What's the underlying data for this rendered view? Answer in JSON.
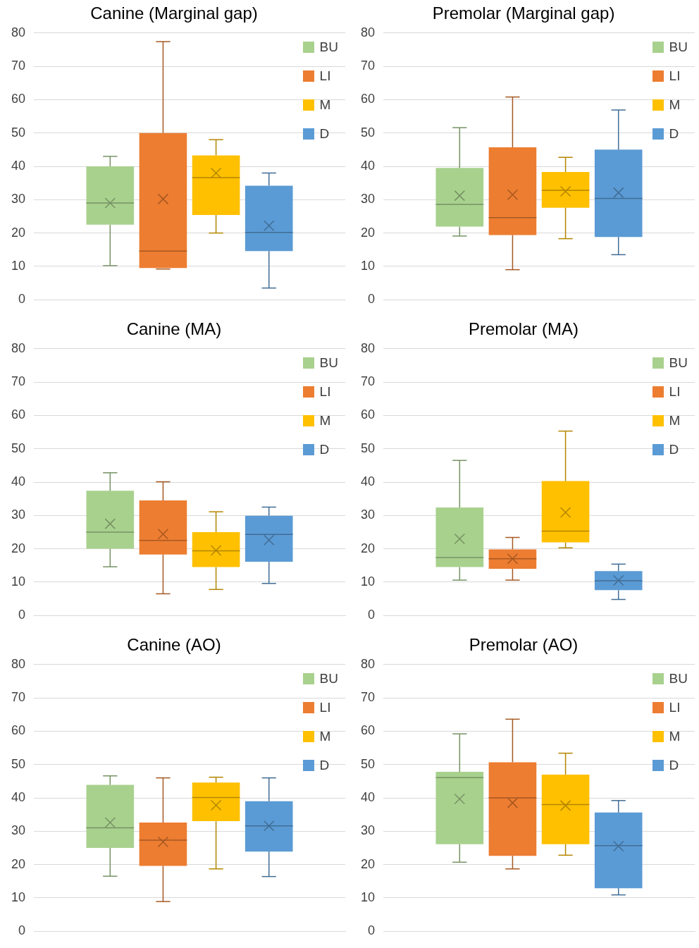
{
  "chart_data": [
    {
      "type": "box",
      "title": "Canine (Marginal gap)",
      "categories": [
        null
      ],
      "ylim": [
        0,
        80
      ],
      "yticks": [
        0,
        10,
        20,
        30,
        40,
        50,
        60,
        70,
        80
      ],
      "grid": "y",
      "legend": "top right",
      "tick_labels": "y",
      "series": [
        {
          "name": "BU",
          "color": "#a9d18e",
          "boxes": [
            {
              "low": 10.2,
              "q1": 22.5,
              "median": 29,
              "q3": 40,
              "high": 43,
              "mean": 29
            }
          ]
        },
        {
          "name": "LI",
          "color": "#ed7d31",
          "boxes": [
            {
              "low": 9.2,
              "q1": 9.5,
              "median": 14.6,
              "q3": 50,
              "high": 77.4,
              "mean": 30.2
            }
          ]
        },
        {
          "name": "M",
          "color": "#ffc000",
          "boxes": [
            {
              "low": 20,
              "q1": 25.4,
              "median": 36.6,
              "q3": 43.3,
              "high": 48,
              "mean": 38
            }
          ]
        },
        {
          "name": "D",
          "color": "#5b9bd5",
          "boxes": [
            {
              "low": 3.5,
              "q1": 14.6,
              "median": 20.2,
              "q3": 34.2,
              "high": 38,
              "mean": 22.2
            }
          ]
        }
      ]
    },
    {
      "type": "box",
      "title": "Premolar (Marginal gap)",
      "categories": [
        null
      ],
      "ylim": [
        0,
        80
      ],
      "yticks": [
        0,
        10,
        20,
        30,
        40,
        50,
        60,
        70,
        80
      ],
      "grid": "y",
      "legend": "top right",
      "tick_labels": "y",
      "series": [
        {
          "name": "BU",
          "color": "#a9d18e",
          "boxes": [
            {
              "low": 19.1,
              "q1": 21.9,
              "median": 28.6,
              "q3": 39.5,
              "high": 51.6,
              "mean": 31.2
            }
          ]
        },
        {
          "name": "LI",
          "color": "#ed7d31",
          "boxes": [
            {
              "low": 9,
              "q1": 19.4,
              "median": 24.6,
              "q3": 45.7,
              "high": 60.8,
              "mean": 31.5
            }
          ]
        },
        {
          "name": "M",
          "color": "#ffc000",
          "boxes": [
            {
              "low": 18.3,
              "q1": 27.6,
              "median": 32.8,
              "q3": 38.3,
              "high": 42.7,
              "mean": 32.5
            }
          ]
        },
        {
          "name": "D",
          "color": "#5b9bd5",
          "boxes": [
            {
              "low": 13.5,
              "q1": 18.8,
              "median": 30.4,
              "q3": 45,
              "high": 56.9,
              "mean": 32.1
            }
          ]
        }
      ]
    },
    {
      "type": "box",
      "title": "Canine (MA)",
      "categories": [
        null
      ],
      "ylim": [
        0,
        80
      ],
      "yticks": [
        0,
        10,
        20,
        30,
        40,
        50,
        60,
        70,
        80
      ],
      "grid": "y",
      "legend": "top right",
      "tick_labels": "y",
      "series": [
        {
          "name": "BU",
          "color": "#a9d18e",
          "boxes": [
            {
              "low": 14.6,
              "q1": 20,
              "median": 25,
              "q3": 37.4,
              "high": 42.8,
              "mean": 27.5
            }
          ]
        },
        {
          "name": "LI",
          "color": "#ed7d31",
          "boxes": [
            {
              "low": 6.5,
              "q1": 18.3,
              "median": 22.5,
              "q3": 34.5,
              "high": 40.1,
              "mean": 24.4
            }
          ]
        },
        {
          "name": "M",
          "color": "#ffc000",
          "boxes": [
            {
              "low": 7.8,
              "q1": 14.5,
              "median": 19.4,
              "q3": 25,
              "high": 31.1,
              "mean": 19.5
            }
          ]
        },
        {
          "name": "D",
          "color": "#5b9bd5",
          "boxes": [
            {
              "low": 9.6,
              "q1": 16.1,
              "median": 24.3,
              "q3": 29.9,
              "high": 32.5,
              "mean": 22.6
            }
          ]
        }
      ]
    },
    {
      "type": "box",
      "title": "Premolar (MA)",
      "categories": [
        null
      ],
      "ylim": [
        0,
        80
      ],
      "yticks": [
        0,
        10,
        20,
        30,
        40,
        50,
        60,
        70,
        80
      ],
      "grid": "y",
      "legend": "top right",
      "tick_labels": "y",
      "series": [
        {
          "name": "BU",
          "color": "#a9d18e",
          "boxes": [
            {
              "low": 10.6,
              "q1": 14.5,
              "median": 17.4,
              "q3": 32.4,
              "high": 46.5,
              "mean": 23
            }
          ]
        },
        {
          "name": "LI",
          "color": "#ed7d31",
          "boxes": [
            {
              "low": 10.6,
              "q1": 14,
              "median": 17,
              "q3": 19.8,
              "high": 23.4,
              "mean": 17
            }
          ]
        },
        {
          "name": "M",
          "color": "#ffc000",
          "boxes": [
            {
              "low": 20.3,
              "q1": 21.9,
              "median": 25.3,
              "q3": 40.3,
              "high": 55.3,
              "mean": 30.9
            }
          ]
        },
        {
          "name": "D",
          "color": "#5b9bd5",
          "boxes": [
            {
              "low": 4.8,
              "q1": 7.6,
              "median": 10.4,
              "q3": 13.3,
              "high": 15.4,
              "mean": 10.5
            }
          ]
        }
      ]
    },
    {
      "type": "box",
      "title": "Canine (AO)",
      "categories": [
        null
      ],
      "ylim": [
        0,
        80
      ],
      "yticks": [
        0,
        10,
        20,
        30,
        40,
        50,
        60,
        70,
        80
      ],
      "grid": "y",
      "legend": "top right",
      "tick_labels": "y",
      "series": [
        {
          "name": "BU",
          "color": "#a9d18e",
          "boxes": [
            {
              "low": 16.5,
              "q1": 25,
              "median": 31,
              "q3": 43.9,
              "high": 46.6,
              "mean": 32.6
            }
          ]
        },
        {
          "name": "LI",
          "color": "#ed7d31",
          "boxes": [
            {
              "low": 8.9,
              "q1": 19.6,
              "median": 27.3,
              "q3": 32.6,
              "high": 46,
              "mean": 26.8
            }
          ]
        },
        {
          "name": "M",
          "color": "#ffc000",
          "boxes": [
            {
              "low": 18.7,
              "q1": 33,
              "median": 40.1,
              "q3": 44.6,
              "high": 46.2,
              "mean": 37.8
            }
          ]
        },
        {
          "name": "D",
          "color": "#5b9bd5",
          "boxes": [
            {
              "low": 16.4,
              "q1": 23.9,
              "median": 31.6,
              "q3": 39,
              "high": 46,
              "mean": 31.6
            }
          ]
        }
      ]
    },
    {
      "type": "box",
      "title": "Premolar (AO)",
      "categories": [
        null
      ],
      "ylim": [
        0,
        80
      ],
      "yticks": [
        0,
        10,
        20,
        30,
        40,
        50,
        60,
        70,
        80
      ],
      "grid": "y",
      "legend": "top right",
      "tick_labels": "y",
      "series": [
        {
          "name": "BU",
          "color": "#a9d18e",
          "boxes": [
            {
              "low": 20.7,
              "q1": 26.1,
              "median": 46.1,
              "q3": 47.8,
              "high": 59.2,
              "mean": 39.7
            }
          ]
        },
        {
          "name": "LI",
          "color": "#ed7d31",
          "boxes": [
            {
              "low": 18.7,
              "q1": 22.6,
              "median": 40,
              "q3": 50.7,
              "high": 63.6,
              "mean": 38.5
            }
          ]
        },
        {
          "name": "M",
          "color": "#ffc000",
          "boxes": [
            {
              "low": 22.8,
              "q1": 26.1,
              "median": 38,
              "q3": 47,
              "high": 53.4,
              "mean": 37.7
            }
          ]
        },
        {
          "name": "D",
          "color": "#5b9bd5",
          "boxes": [
            {
              "low": 10.9,
              "q1": 12.9,
              "median": 25.7,
              "q3": 35.6,
              "high": 39.2,
              "mean": 25.5
            }
          ]
        }
      ]
    }
  ]
}
